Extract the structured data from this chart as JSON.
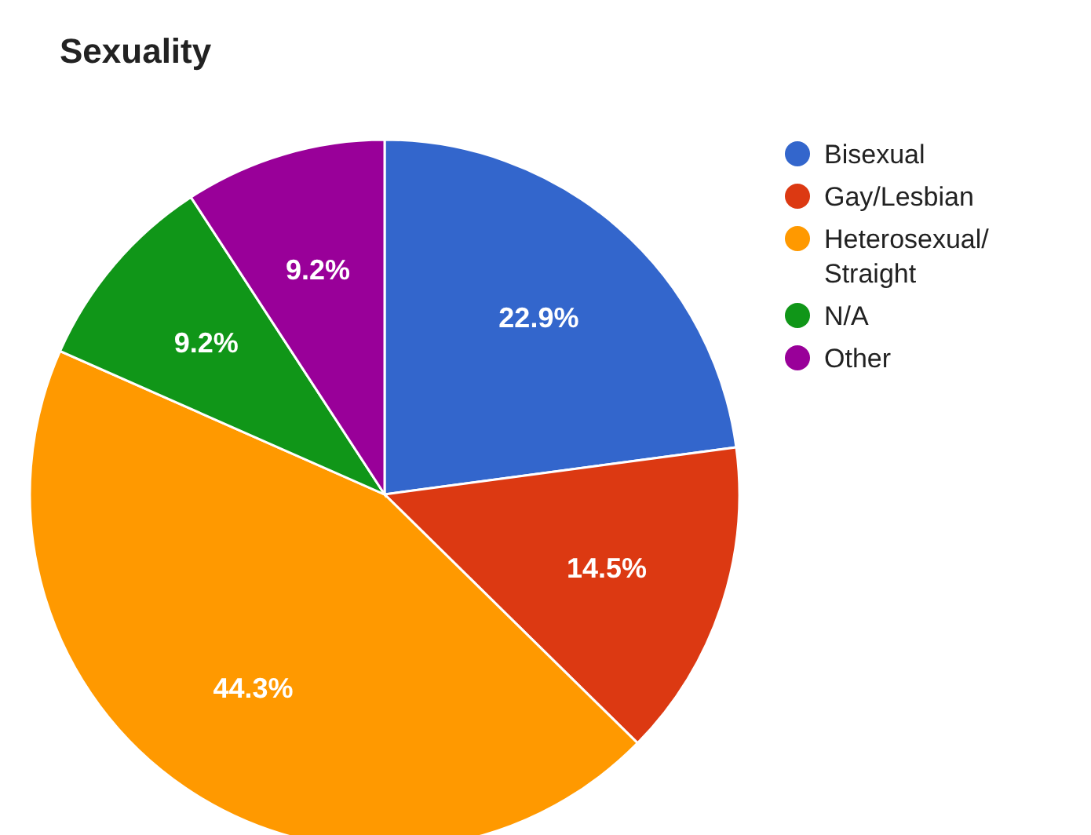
{
  "chart_data": {
    "type": "pie",
    "title": "Sexuality",
    "categories": [
      "Bisexual",
      "Gay/Lesbian",
      "Heterosexual/Straight",
      "N/A",
      "Other"
    ],
    "values": [
      22.9,
      14.5,
      44.3,
      9.2,
      9.2
    ],
    "value_labels": [
      "22.9%",
      "14.5%",
      "44.3%",
      "9.2%",
      "9.2%"
    ],
    "colors": [
      "#3366cc",
      "#dc3912",
      "#ff9900",
      "#109618",
      "#990099"
    ],
    "legend": "right"
  }
}
